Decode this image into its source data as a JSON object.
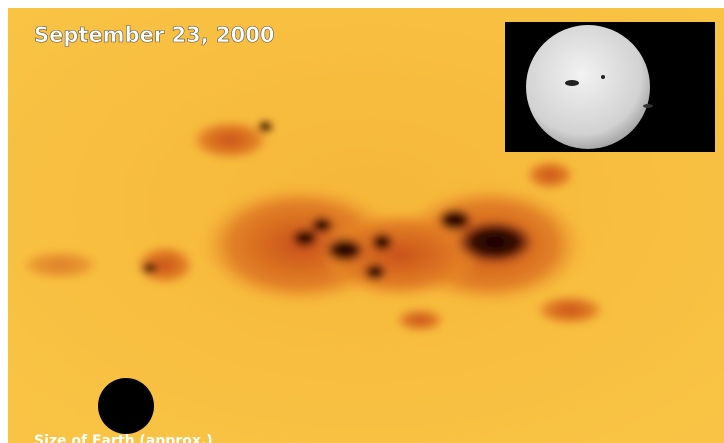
{
  "title": "September 23, 2000",
  "caption": "Size of Earth (approx.)"
}
